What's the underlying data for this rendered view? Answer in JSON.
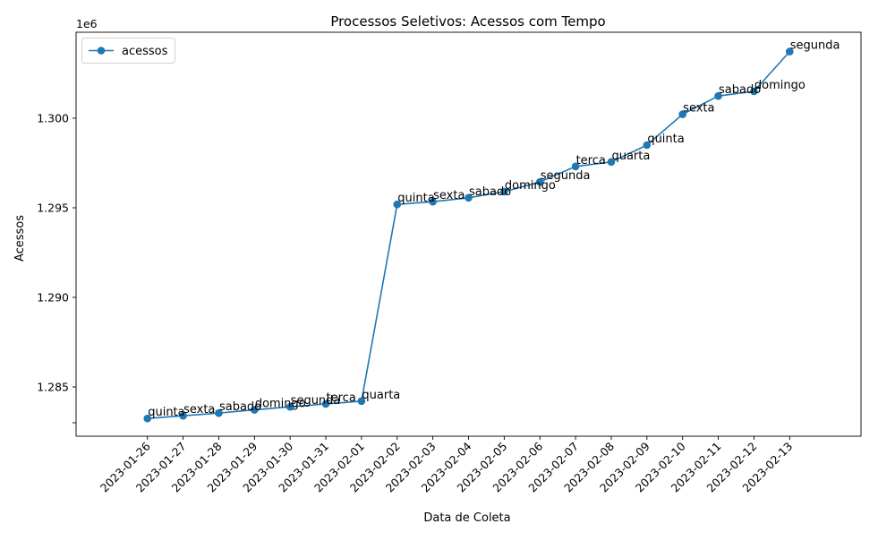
{
  "chart_data": {
    "type": "line",
    "title": "Processos Seletivos: Acessos com Tempo",
    "xlabel": "Data de Coleta",
    "ylabel": "Acessos",
    "y_offset_label": "1e6",
    "legend_position": "upper-left",
    "grid": false,
    "series": [
      {
        "name": "acessos",
        "color": "#1f77b4",
        "x": [
          "2023-01-26",
          "2023-01-27",
          "2023-01-28",
          "2023-01-29",
          "2023-01-30",
          "2023-01-31",
          "2023-02-01",
          "2023-02-02",
          "2023-02-03",
          "2023-02-04",
          "2023-02-05",
          "2023-02-06",
          "2023-02-07",
          "2023-02-08",
          "2023-02-09",
          "2023-02-10",
          "2023-02-11",
          "2023-02-12",
          "2023-02-13"
        ],
        "y": [
          1283240,
          1283390,
          1283540,
          1283720,
          1283890,
          1284050,
          1284210,
          1295190,
          1295340,
          1295560,
          1295900,
          1296440,
          1297310,
          1297560,
          1298500,
          1300220,
          1301240,
          1301500,
          1303720
        ],
        "labels": [
          "quinta",
          "sexta",
          "sabado",
          "domingo",
          "segunda",
          "terca",
          "quarta",
          "quinta",
          "sexta",
          "sabado",
          "domingo",
          "segunda",
          "terca",
          "quarta",
          "quinta",
          "sexta",
          "sabado",
          "domingo",
          "segunda"
        ]
      }
    ],
    "xticks": [
      "2023-01-26",
      "2023-01-27",
      "2023-01-28",
      "2023-01-29",
      "2023-01-30",
      "2023-01-31",
      "2023-02-01",
      "2023-02-02",
      "2023-02-03",
      "2023-02-04",
      "2023-02-05",
      "2023-02-06",
      "2023-02-07",
      "2023-02-08",
      "2023-02-09",
      "2023-02-10",
      "2023-02-11",
      "2023-02-12",
      "2023-02-13"
    ],
    "yticks": [
      1283000,
      1285000,
      1290000,
      1295000,
      1300000
    ],
    "ytick_labels": [
      "",
      "1.285",
      "1.290",
      "1.295",
      "1.300"
    ],
    "ylim": [
      1282250,
      1304800
    ],
    "xlim": [
      "2023-01-24",
      "2023-02-15"
    ]
  }
}
